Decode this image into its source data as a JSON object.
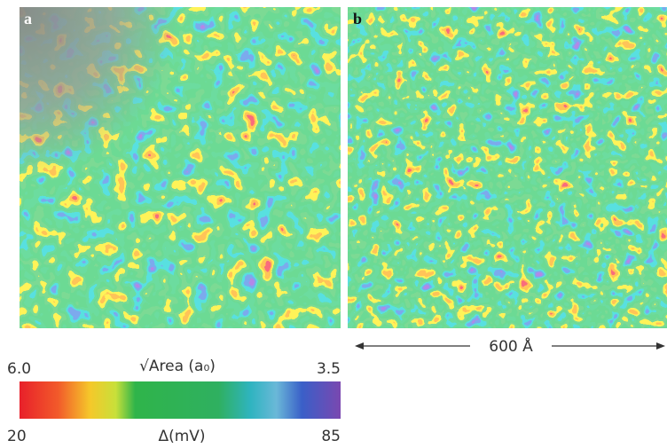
{
  "panels": [
    {
      "label": "a"
    },
    {
      "label": "b"
    }
  ],
  "scale_bar": {
    "label": "600 Å"
  },
  "colorbar": {
    "top_title": "√Area (a₀)",
    "top_left": "6.0",
    "top_right": "3.5",
    "bottom_title": "Δ(mV)",
    "bottom_left": "20",
    "bottom_right": "85"
  }
}
